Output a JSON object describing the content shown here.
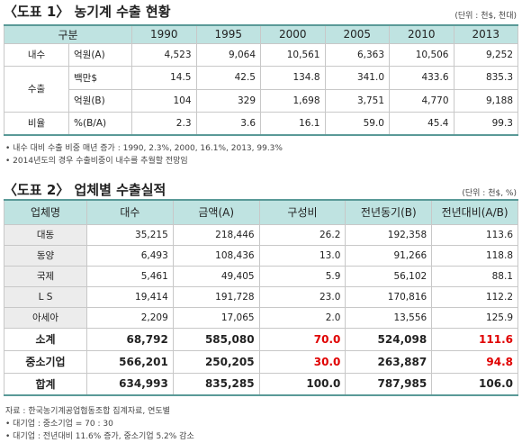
{
  "table1": {
    "title": "〈도표 1〉 농기계 수출 현황",
    "unit": "(단위 : 천$, 천대)",
    "header": [
      "구분",
      "1990",
      "1995",
      "2000",
      "2005",
      "2010",
      "2013"
    ],
    "rows": [
      {
        "group": "내수",
        "unit": "억원(A)",
        "values": [
          "4,523",
          "9,064",
          "10,561",
          "6,363",
          "10,506",
          "9,252"
        ]
      },
      {
        "group": "수출",
        "unit": "백만$",
        "values": [
          "14.5",
          "42.5",
          "134.8",
          "341.0",
          "433.6",
          "835.3"
        ]
      },
      {
        "unit": "억원(B)",
        "values": [
          "104",
          "329",
          "1,698",
          "3,751",
          "4,770",
          "9,188"
        ]
      },
      {
        "group": "비율",
        "unit": "%(B/A)",
        "values": [
          "2.3",
          "3.6",
          "16.1",
          "59.0",
          "45.4",
          "99.3"
        ]
      }
    ],
    "notes": [
      "• 내수 대비 수출 비중 매년 증가 : 1990, 2.3%, 2000, 16.1%, 2013, 99.3%",
      "• 2014년도의 경우 수출비중이 내수를 추월할 전망임"
    ]
  },
  "table2": {
    "title": "〈도표 2〉 업체별 수출실적",
    "unit": "(단위 : 천$, %)",
    "header": [
      "업체명",
      "대수",
      "금액(A)",
      "구성비",
      "전년동기(B)",
      "전년대비(A/B)"
    ],
    "rows": [
      [
        "대동",
        "35,215",
        "218,446",
        "26.2",
        "192,358",
        "113.6"
      ],
      [
        "동양",
        "6,493",
        "108,436",
        "13.0",
        "91,266",
        "118.8"
      ],
      [
        "국제",
        "5,461",
        "49,405",
        "5.9",
        "56,102",
        "88.1"
      ],
      [
        "L S",
        "19,414",
        "191,728",
        "23.0",
        "170,816",
        "112.2"
      ],
      [
        "아세아",
        "2,209",
        "17,065",
        "2.0",
        "13,556",
        "125.9"
      ],
      [
        "소계",
        "68,792",
        "585,080",
        "70.0",
        "524,098",
        "111.6"
      ],
      [
        "중소기업",
        "566,201",
        "250,205",
        "30.0",
        "263,887",
        "94.8"
      ],
      [
        "합계",
        "634,993",
        "835,285",
        "100.0",
        "787,985",
        "106.0"
      ]
    ],
    "notes": [
      "자료 : 한국농기계공업협동조합 집계자료, 연도별",
      "• 대기업 : 중소기업 = 70 : 30",
      "• 대기업 : 전년대비 11.6% 증가, 중소기업 5.2% 감소"
    ]
  }
}
